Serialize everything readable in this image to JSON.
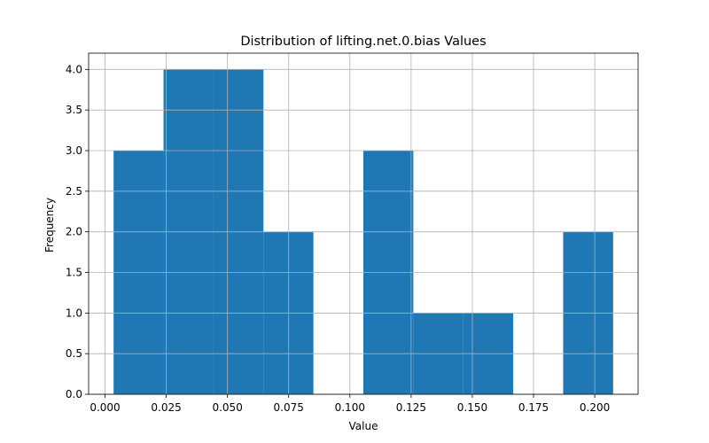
{
  "chart_data": {
    "type": "bar",
    "title": "Distribution of lifting.net.0.bias Values",
    "xlabel": "Value",
    "ylabel": "Frequency",
    "bin_edges": [
      0.0035,
      0.0239,
      0.0443,
      0.0647,
      0.0851,
      0.1055,
      0.1259,
      0.1463,
      0.1667,
      0.1871,
      0.2075
    ],
    "values": [
      3,
      4,
      4,
      2,
      0,
      3,
      1,
      1,
      0,
      2
    ],
    "xlim": [
      -0.0067,
      0.2177
    ],
    "ylim": [
      0,
      4.2
    ],
    "x_ticks": [
      0.0,
      0.025,
      0.05,
      0.075,
      0.1,
      0.125,
      0.15,
      0.175,
      0.2
    ],
    "x_tick_labels": [
      "0.000",
      "0.025",
      "0.050",
      "0.075",
      "0.100",
      "0.125",
      "0.150",
      "0.175",
      "0.200"
    ],
    "y_ticks": [
      0.0,
      0.5,
      1.0,
      1.5,
      2.0,
      2.5,
      3.0,
      3.5,
      4.0
    ],
    "y_tick_labels": [
      "0.0",
      "0.5",
      "1.0",
      "1.5",
      "2.0",
      "2.5",
      "3.0",
      "3.5",
      "4.0"
    ],
    "grid": true,
    "bar_color": "#1f77b4",
    "grid_color": "#b0b0b0"
  }
}
